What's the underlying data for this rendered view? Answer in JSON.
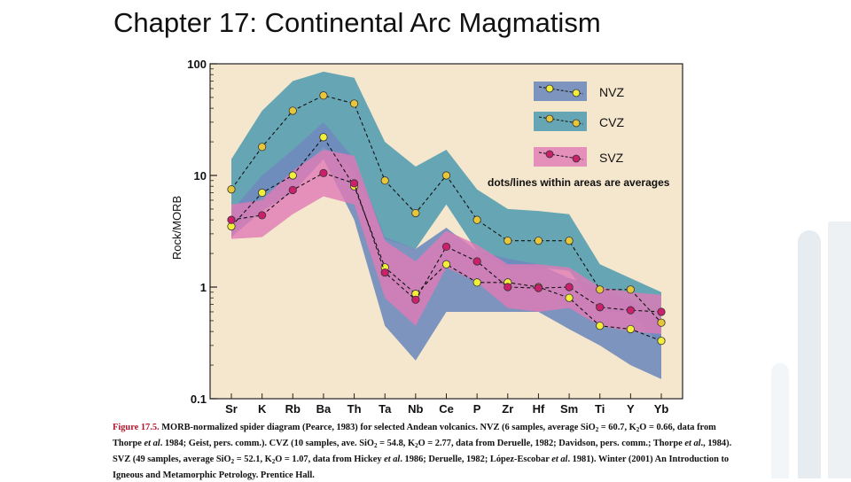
{
  "slide": {
    "title": "Chapter 17: Continental Arc Magmatism"
  },
  "caption": {
    "figure_label": "Figure 17.5.",
    "part1": " MORB-normalized spider diagram (Pearce, 1983) for selected Andean volcanics. NVZ (6 samples, average SiO",
    "sub1": "2",
    "part2": " = 60.7, K",
    "sub2": "2",
    "part3": "O = 0.66, data from Thorpe ",
    "etal1": "et al",
    "part4": ". 1984; Geist, pers. comm.). CVZ (10 samples, ave. SiO",
    "sub3": "2",
    "part5": " = 54.8, K",
    "sub4": "2",
    "part6": "O = 2.77, data from Deruelle, 1982; Davidson, pers. comm.; Thorpe ",
    "etal2": "et al",
    "part7": "., 1984). SVZ (49 samples, average SiO",
    "sub5": "2",
    "part8": " = 52.1, K",
    "sub6": "2",
    "part9": "O = 1.07, data from Hickey ",
    "etal3": "et al",
    "part10": ". 1986; Deruelle, 1982; López-Escobar ",
    "etal4": "et al",
    "part11": ". 1981). Winter (2001) An Introduction to Igneous and Metamorphic Petrology. Prentice Hall."
  },
  "colors": {
    "panel_bg": "#f5e7cd",
    "nvz_band": "#6f8bbd",
    "cvz_band": "#4c9aaf",
    "svz_band": "#e07ab5",
    "nvz_dot": "#f2ee3a",
    "cvz_dot": "#e8c63a",
    "svz_dot": "#cc1f6c"
  },
  "chart_data": {
    "type": "line",
    "title": "",
    "xlabel": "",
    "ylabel": "Rock/MORB",
    "yscale": "log",
    "ylim": [
      0.1,
      100
    ],
    "yticks": [
      {
        "value": 0.1,
        "label": "0.1"
      },
      {
        "value": 1,
        "label": "1"
      },
      {
        "value": 10,
        "label": "10"
      },
      {
        "value": 100,
        "label": "100"
      }
    ],
    "categories": [
      "Sr",
      "K",
      "Rb",
      "Ba",
      "Th",
      "Ta",
      "Nb",
      "Ce",
      "P",
      "Zr",
      "Hf",
      "Sm",
      "Ti",
      "Y",
      "Yb"
    ],
    "annotation": "dots/lines within areas are averages",
    "legend_position": "top-right",
    "series": [
      {
        "name": "NVZ",
        "values": [
          3.5,
          7.0,
          10.0,
          22.0,
          8.0,
          1.5,
          0.87,
          1.6,
          1.1,
          1.1,
          1.0,
          0.8,
          0.45,
          0.42,
          0.33
        ],
        "band_upper": [
          4.8,
          10.0,
          17.0,
          30.0,
          14.0,
          2.8,
          2.2,
          3.4,
          2.1,
          1.8,
          1.6,
          1.2,
          1.0,
          0.75,
          0.5
        ],
        "band_lower": [
          2.8,
          4.8,
          7.0,
          14.0,
          4.0,
          0.45,
          0.22,
          0.6,
          0.6,
          0.6,
          0.6,
          0.42,
          0.3,
          0.2,
          0.15
        ]
      },
      {
        "name": "CVZ",
        "values": [
          7.5,
          18.0,
          38.0,
          52.0,
          44.0,
          9.0,
          4.6,
          10.0,
          4.0,
          2.6,
          2.6,
          2.6,
          0.95,
          0.95,
          0.48
        ],
        "band_upper": [
          14.0,
          38.0,
          70.0,
          85.0,
          75.0,
          20.0,
          12.0,
          17.0,
          7.5,
          5.0,
          4.8,
          4.5,
          1.6,
          1.2,
          0.9
        ],
        "band_lower": [
          3.0,
          6.5,
          10.0,
          18.0,
          11.0,
          2.7,
          2.2,
          5.5,
          2.1,
          1.5,
          1.5,
          1.4,
          0.6,
          0.6,
          0.3
        ]
      },
      {
        "name": "SVZ",
        "values": [
          4.0,
          4.4,
          7.4,
          10.5,
          8.5,
          1.35,
          0.77,
          2.3,
          1.7,
          1.0,
          0.98,
          1.0,
          0.66,
          0.62,
          0.6
        ],
        "band_upper": [
          5.5,
          6.0,
          11.0,
          17.0,
          15.0,
          2.6,
          1.7,
          3.2,
          2.4,
          1.6,
          1.6,
          1.5,
          1.0,
          0.9,
          0.85
        ],
        "band_lower": [
          2.7,
          2.8,
          4.5,
          6.5,
          5.5,
          0.8,
          0.45,
          1.5,
          1.1,
          0.65,
          0.6,
          0.65,
          0.45,
          0.4,
          0.38
        ]
      }
    ]
  }
}
